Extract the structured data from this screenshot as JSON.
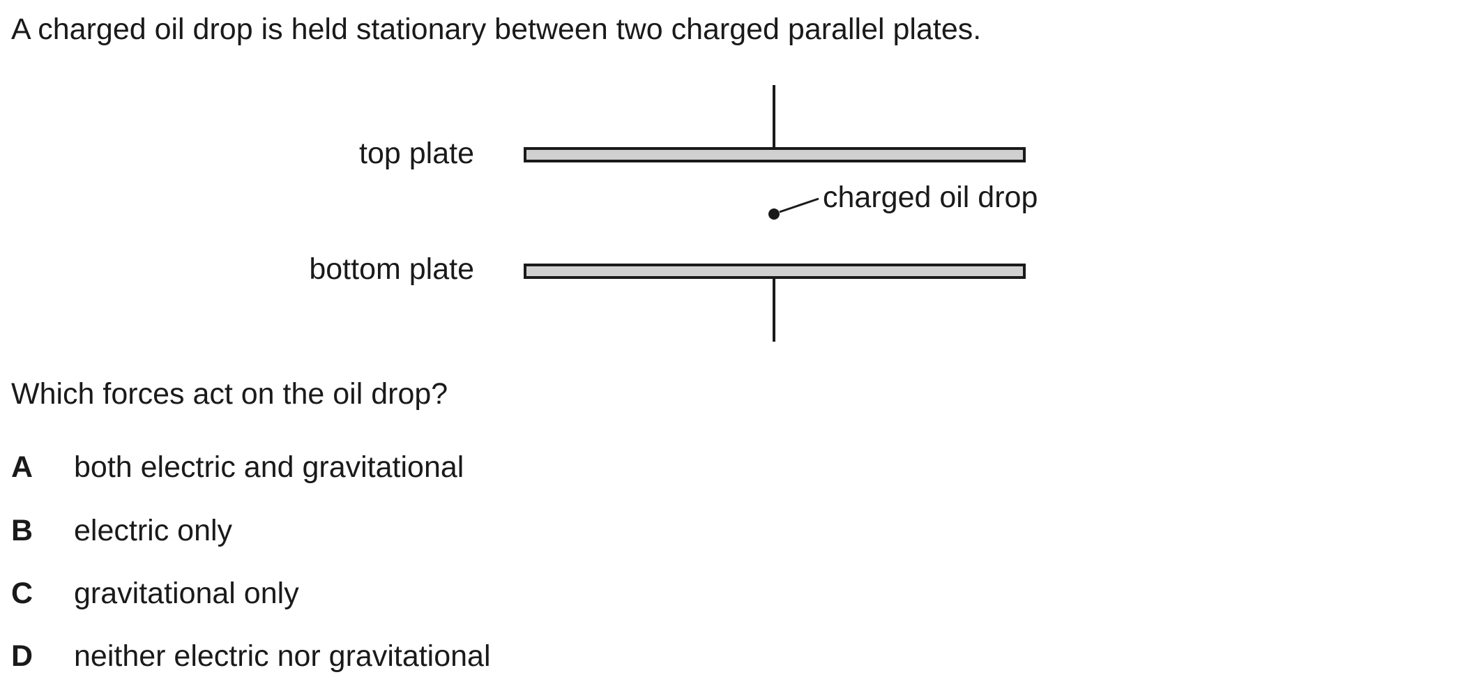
{
  "intro": "A charged oil drop is held stationary between two charged parallel plates.",
  "diagram": {
    "top_plate_label": "top plate",
    "bottom_plate_label": "bottom plate",
    "oil_drop_label": "charged oil drop"
  },
  "question": "Which forces act on the oil drop?",
  "options": [
    {
      "letter": "A",
      "text": "both electric and gravitational"
    },
    {
      "letter": "B",
      "text": "electric only"
    },
    {
      "letter": "C",
      "text": "gravitational only"
    },
    {
      "letter": "D",
      "text": "neither electric nor gravitational"
    }
  ]
}
